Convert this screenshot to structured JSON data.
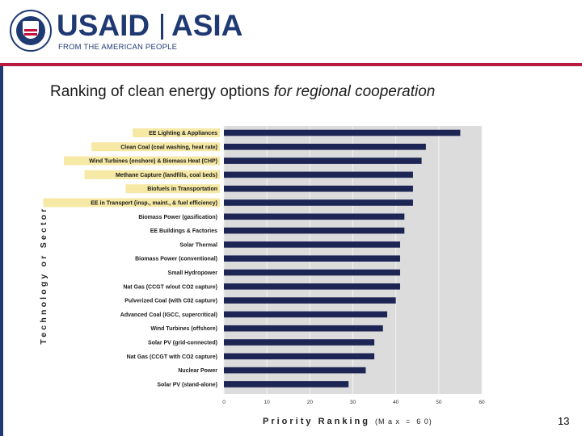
{
  "header": {
    "brand_name": "USAID",
    "region": "ASIA",
    "tagline": "FROM THE AMERICAN PEOPLE"
  },
  "slide": {
    "title_normal": "Ranking of clean energy options ",
    "title_italic": "for regional cooperation",
    "page_number": "13"
  },
  "colors": {
    "bar": "#1c2553",
    "plot_bg": "#dcdcdc",
    "label_bg": "#f6e9a6",
    "brand_blue": "#1f3a73",
    "brand_red": "#b8193e"
  },
  "chart_data": {
    "type": "bar",
    "orientation": "horizontal",
    "title": "",
    "xlabel": "Priority Ranking",
    "xlabel_note": "(M a x  =  6 0)",
    "ylabel": "Technology or Sector",
    "xlim": [
      0,
      60
    ],
    "xticks": [
      0,
      10,
      20,
      30,
      40,
      50,
      60
    ],
    "xtick_labels": [
      "0",
      "10",
      "20",
      "30",
      "40",
      "50",
      "60"
    ],
    "grid": "vertical",
    "categories": [
      "EE Lighting & Appliances",
      "Clean Coal (coal washing, heat rate)",
      "Wind Turbines (onshore) & Biomass Heat (CHP)",
      "Methane Capture (landfills, coal beds)",
      "Biofuels in Transportation",
      "EE in Transport (insp., maint., & fuel efficiency)",
      "Biomass Power (gasification)",
      "EE Buildings & Factories",
      "Solar Thermal",
      "Biomass Power (conventional)",
      "Small Hydropower",
      "Nat Gas (CCGT w/out CO2 capture)",
      "Pulverized Coal (with C02 capture)",
      "Advanced Coal (IGCC, supercritical)",
      "Wind Turbines (offshore)",
      "Solar PV (grid-connected)",
      "Nat Gas (CCGT with CO2 capture)",
      "Nuclear Power",
      "Solar PV (stand-alone)"
    ],
    "values": [
      55,
      47,
      46,
      44,
      44,
      44,
      42,
      42,
      41,
      41,
      41,
      41,
      40,
      38,
      37,
      35,
      35,
      33,
      29
    ],
    "highlighted_categories": [
      0,
      1,
      2,
      3,
      4,
      5
    ]
  }
}
